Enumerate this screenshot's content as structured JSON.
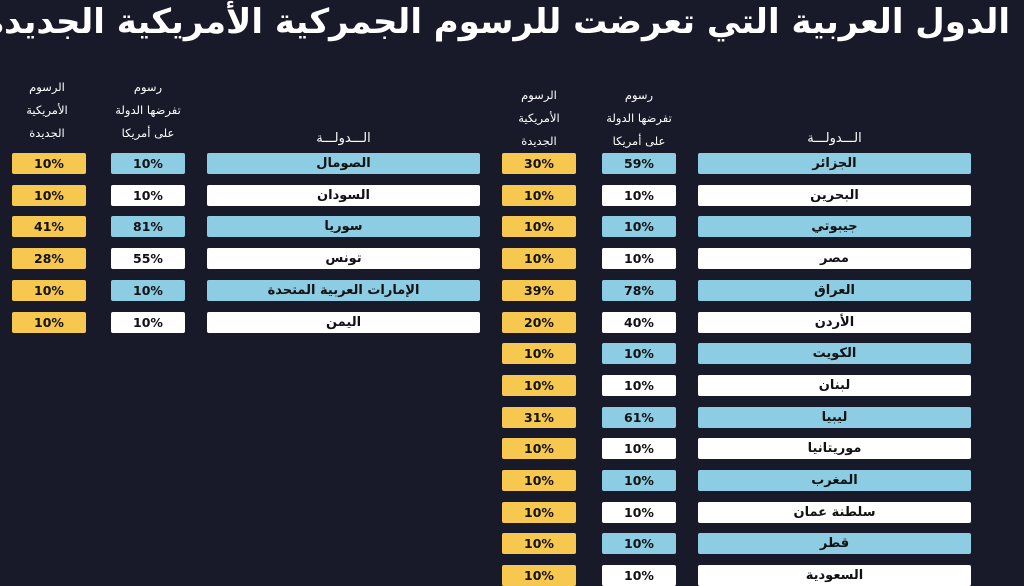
{
  "title": "الدول العربية التي تعرضت للرسوم الجمركية الأمريكية الجديدة",
  "headers": {
    "country": "الـــدولـــة",
    "country_tariff_lines": [
      "رسوم",
      "تفرضها الدولة",
      "على أمريكا"
    ],
    "us_tariff_lines": [
      "الرسوم",
      "الأمريكية",
      "الجديدة"
    ]
  },
  "colors": {
    "background": "#181a29",
    "blue_row": "#8dcde4",
    "white_row": "#ffffff",
    "new_tariff": "#f7c84f"
  },
  "right_table": [
    {
      "country": "الجزائر",
      "country_tariff": "59%",
      "us_tariff": "30%",
      "style": "blue"
    },
    {
      "country": "البحرين",
      "country_tariff": "10%",
      "us_tariff": "10%",
      "style": "white"
    },
    {
      "country": "جيبوتي",
      "country_tariff": "10%",
      "us_tariff": "10%",
      "style": "blue"
    },
    {
      "country": "مصر",
      "country_tariff": "10%",
      "us_tariff": "10%",
      "style": "white"
    },
    {
      "country": "العراق",
      "country_tariff": "78%",
      "us_tariff": "39%",
      "style": "blue"
    },
    {
      "country": "الأردن",
      "country_tariff": "40%",
      "us_tariff": "20%",
      "style": "white"
    },
    {
      "country": "الكويت",
      "country_tariff": "10%",
      "us_tariff": "10%",
      "style": "blue"
    },
    {
      "country": "لبنان",
      "country_tariff": "10%",
      "us_tariff": "10%",
      "style": "white"
    },
    {
      "country": "ليبيا",
      "country_tariff": "61%",
      "us_tariff": "31%",
      "style": "blue"
    },
    {
      "country": "موريتانيا",
      "country_tariff": "10%",
      "us_tariff": "10%",
      "style": "white"
    },
    {
      "country": "المغرب",
      "country_tariff": "10%",
      "us_tariff": "10%",
      "style": "blue"
    },
    {
      "country": "سلطنة عمان",
      "country_tariff": "10%",
      "us_tariff": "10%",
      "style": "white"
    },
    {
      "country": "قطر",
      "country_tariff": "10%",
      "us_tariff": "10%",
      "style": "blue"
    },
    {
      "country": "السعودية",
      "country_tariff": "10%",
      "us_tariff": "10%",
      "style": "white"
    }
  ],
  "left_table": [
    {
      "country": "الصومال",
      "country_tariff": "10%",
      "us_tariff": "10%",
      "style": "blue"
    },
    {
      "country": "السودان",
      "country_tariff": "10%",
      "us_tariff": "10%",
      "style": "white"
    },
    {
      "country": "سوريا",
      "country_tariff": "81%",
      "us_tariff": "41%",
      "style": "blue"
    },
    {
      "country": "تونس",
      "country_tariff": "55%",
      "us_tariff": "28%",
      "style": "white"
    },
    {
      "country": "الإمارات العربية المتحدة",
      "country_tariff": "10%",
      "us_tariff": "10%",
      "style": "blue"
    },
    {
      "country": "اليمن",
      "country_tariff": "10%",
      "us_tariff": "10%",
      "style": "white"
    }
  ]
}
